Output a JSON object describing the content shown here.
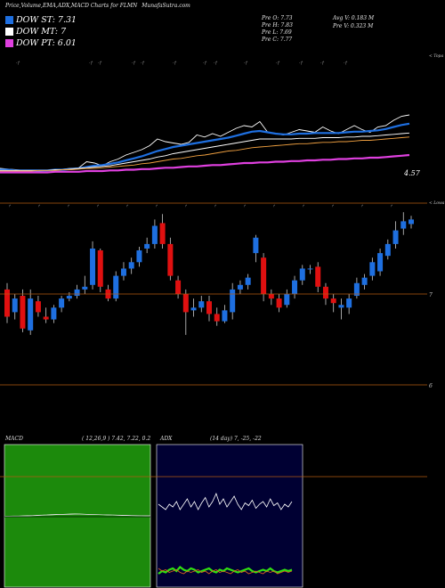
{
  "header": {
    "title": "Price,Volume,EMA,ADX,MACD Charts for FLMN",
    "site": "MunafaSutra.com"
  },
  "legend": [
    {
      "label": "DOW ST: 7.31",
      "color": "#1e6fe0"
    },
    {
      "label": "DOW MT: 7",
      "color": "#ffffff"
    },
    {
      "label": "DOW PT: 6.01",
      "color": "#e040e0"
    }
  ],
  "quote": {
    "pre_o": "Pre   O: 7.73",
    "pre_h": "Pre   H: 7.83",
    "pre_l": "Pre   L: 7.69",
    "pre_c": "Pre   C: 7.77",
    "avg_v": "Avg V: 0.183 M",
    "pre_v": "Pre   V: 0.323 M"
  },
  "labels": {
    "price_level": "4.57",
    "top_tag": "< Topa",
    "lower_tag": "< Lowa",
    "scale_7": "7",
    "scale_6": "6"
  },
  "macd": {
    "title": "MACD",
    "params": "( 12,26,9 ) 7.42,  7.22,  0.2",
    "accent": "#1c8a0c"
  },
  "adx": {
    "title": "ADX",
    "params": "(14  day) 7,  -25,  -22",
    "accent": "#000033"
  },
  "chart_data": {
    "type": "candlestick",
    "symbol": "FLMN",
    "y_scale_ticks": [
      7,
      6
    ],
    "candles": [
      {
        "o": 7.05,
        "c": 6.75,
        "h": 7.12,
        "l": 6.68
      },
      {
        "o": 6.8,
        "c": 6.95,
        "h": 7.0,
        "l": 6.72
      },
      {
        "o": 6.98,
        "c": 6.62,
        "h": 7.05,
        "l": 6.58
      },
      {
        "o": 6.6,
        "c": 6.95,
        "h": 7.05,
        "l": 6.55
      },
      {
        "o": 6.92,
        "c": 6.8,
        "h": 6.98,
        "l": 6.75
      },
      {
        "o": 6.75,
        "c": 6.72,
        "h": 6.85,
        "l": 6.68
      },
      {
        "o": 6.72,
        "c": 6.85,
        "h": 6.88,
        "l": 6.68
      },
      {
        "o": 6.85,
        "c": 6.95,
        "h": 6.98,
        "l": 6.8
      },
      {
        "o": 6.95,
        "c": 6.98,
        "h": 7.02,
        "l": 6.92
      },
      {
        "o": 6.98,
        "c": 7.05,
        "h": 7.1,
        "l": 6.95
      },
      {
        "o": 7.05,
        "c": 7.08,
        "h": 7.2,
        "l": 7.0
      },
      {
        "o": 7.1,
        "c": 7.5,
        "h": 7.58,
        "l": 7.05
      },
      {
        "o": 7.48,
        "c": 7.08,
        "h": 7.5,
        "l": 7.02
      },
      {
        "o": 7.05,
        "c": 6.95,
        "h": 7.1,
        "l": 6.92
      },
      {
        "o": 6.95,
        "c": 7.2,
        "h": 7.25,
        "l": 6.92
      },
      {
        "o": 7.2,
        "c": 7.28,
        "h": 7.35,
        "l": 7.15
      },
      {
        "o": 7.28,
        "c": 7.35,
        "h": 7.4,
        "l": 7.22
      },
      {
        "o": 7.35,
        "c": 7.48,
        "h": 7.52,
        "l": 7.3
      },
      {
        "o": 7.5,
        "c": 7.55,
        "h": 7.62,
        "l": 7.45
      },
      {
        "o": 7.55,
        "c": 7.75,
        "h": 7.82,
        "l": 7.5
      },
      {
        "o": 7.78,
        "c": 7.55,
        "h": 7.88,
        "l": 7.5
      },
      {
        "o": 7.55,
        "c": 7.2,
        "h": 7.62,
        "l": 7.15
      },
      {
        "o": 7.15,
        "c": 7.0,
        "h": 7.2,
        "l": 6.95
      },
      {
        "o": 7.0,
        "c": 6.8,
        "h": 7.05,
        "l": 6.55
      },
      {
        "o": 6.82,
        "c": 6.85,
        "h": 6.95,
        "l": 6.75
      },
      {
        "o": 6.85,
        "c": 6.92,
        "h": 6.98,
        "l": 6.8
      },
      {
        "o": 6.92,
        "c": 6.78,
        "h": 6.98,
        "l": 6.7
      },
      {
        "o": 6.78,
        "c": 6.7,
        "h": 6.85,
        "l": 6.65
      },
      {
        "o": 6.7,
        "c": 6.82,
        "h": 6.88,
        "l": 6.68
      },
      {
        "o": 6.8,
        "c": 7.05,
        "h": 7.12,
        "l": 6.72
      },
      {
        "o": 7.05,
        "c": 7.1,
        "h": 7.15,
        "l": 7.0
      },
      {
        "o": 7.1,
        "c": 7.18,
        "h": 7.22,
        "l": 7.05
      },
      {
        "o": 7.45,
        "c": 7.62,
        "h": 7.65,
        "l": 7.35
      },
      {
        "o": 7.4,
        "c": 7.0,
        "h": 7.45,
        "l": 6.92
      },
      {
        "o": 7.0,
        "c": 6.95,
        "h": 7.05,
        "l": 6.88
      },
      {
        "o": 6.95,
        "c": 6.85,
        "h": 7.0,
        "l": 6.8
      },
      {
        "o": 6.88,
        "c": 7.0,
        "h": 7.05,
        "l": 6.85
      },
      {
        "o": 7.0,
        "c": 7.15,
        "h": 7.2,
        "l": 6.95
      },
      {
        "o": 7.15,
        "c": 7.28,
        "h": 7.32,
        "l": 7.1
      },
      {
        "o": 7.28,
        "c": 7.28,
        "h": 7.32,
        "l": 7.22
      },
      {
        "o": 7.3,
        "c": 7.08,
        "h": 7.35,
        "l": 7.02
      },
      {
        "o": 7.08,
        "c": 6.95,
        "h": 7.12,
        "l": 6.88
      },
      {
        "o": 6.95,
        "c": 6.9,
        "h": 7.0,
        "l": 6.8
      },
      {
        "o": 6.85,
        "c": 6.88,
        "h": 6.95,
        "l": 6.72
      },
      {
        "o": 6.85,
        "c": 6.95,
        "h": 7.0,
        "l": 6.78
      },
      {
        "o": 6.98,
        "c": 7.12,
        "h": 7.18,
        "l": 6.95
      },
      {
        "o": 7.1,
        "c": 7.18,
        "h": 7.22,
        "l": 7.05
      },
      {
        "o": 7.2,
        "c": 7.35,
        "h": 7.4,
        "l": 7.15
      },
      {
        "o": 7.25,
        "c": 7.45,
        "h": 7.5,
        "l": 7.2
      },
      {
        "o": 7.42,
        "c": 7.55,
        "h": 7.6,
        "l": 7.38
      },
      {
        "o": 7.55,
        "c": 7.7,
        "h": 7.8,
        "l": 7.5
      },
      {
        "o": 7.72,
        "c": 7.8,
        "h": 7.9,
        "l": 7.65
      },
      {
        "o": 7.77,
        "c": 7.82,
        "h": 7.86,
        "l": 7.72
      }
    ],
    "ema_lines": [
      {
        "name": "price",
        "color": "#ffffff",
        "values": [
          0.08,
          0.07,
          0.06,
          0.05,
          0.02,
          0.04,
          0.05,
          0.06,
          0.07,
          0.08,
          0.09,
          0.18,
          0.16,
          0.12,
          0.18,
          0.22,
          0.28,
          0.32,
          0.36,
          0.42,
          0.52,
          0.48,
          0.46,
          0.44,
          0.47,
          0.58,
          0.55,
          0.6,
          0.56,
          0.62,
          0.68,
          0.72,
          0.7,
          0.78,
          0.62,
          0.6,
          0.58,
          0.62,
          0.66,
          0.64,
          0.62,
          0.7,
          0.64,
          0.6,
          0.66,
          0.72,
          0.66,
          0.62,
          0.7,
          0.72,
          0.8,
          0.86,
          0.88
        ]
      },
      {
        "name": "ema-short",
        "color": "#1e6fe0",
        "values": [
          0.06,
          0.06,
          0.05,
          0.05,
          0.05,
          0.05,
          0.05,
          0.06,
          0.06,
          0.07,
          0.08,
          0.1,
          0.12,
          0.13,
          0.15,
          0.17,
          0.2,
          0.23,
          0.26,
          0.3,
          0.34,
          0.37,
          0.4,
          0.42,
          0.44,
          0.46,
          0.48,
          0.5,
          0.52,
          0.54,
          0.57,
          0.6,
          0.63,
          0.64,
          0.62,
          0.6,
          0.59,
          0.59,
          0.6,
          0.6,
          0.61,
          0.61,
          0.61,
          0.61,
          0.62,
          0.63,
          0.63,
          0.64,
          0.65,
          0.67,
          0.7,
          0.73,
          0.75
        ]
      },
      {
        "name": "ema-mid",
        "color": "#ffffff",
        "values": [
          0.05,
          0.05,
          0.05,
          0.05,
          0.05,
          0.05,
          0.05,
          0.06,
          0.06,
          0.07,
          0.08,
          0.09,
          0.1,
          0.11,
          0.12,
          0.14,
          0.16,
          0.18,
          0.2,
          0.22,
          0.25,
          0.27,
          0.3,
          0.32,
          0.34,
          0.36,
          0.38,
          0.4,
          0.42,
          0.44,
          0.46,
          0.48,
          0.5,
          0.52,
          0.52,
          0.52,
          0.52,
          0.52,
          0.53,
          0.53,
          0.53,
          0.54,
          0.54,
          0.54,
          0.55,
          0.55,
          0.56,
          0.56,
          0.57,
          0.58,
          0.59,
          0.6,
          0.61
        ]
      },
      {
        "name": "ema-long",
        "color": "#f0a040",
        "values": [
          0.04,
          0.04,
          0.04,
          0.04,
          0.04,
          0.05,
          0.05,
          0.05,
          0.06,
          0.06,
          0.07,
          0.08,
          0.08,
          0.09,
          0.1,
          0.11,
          0.12,
          0.13,
          0.15,
          0.16,
          0.18,
          0.2,
          0.22,
          0.23,
          0.25,
          0.27,
          0.28,
          0.3,
          0.32,
          0.34,
          0.35,
          0.37,
          0.39,
          0.4,
          0.41,
          0.42,
          0.43,
          0.44,
          0.45,
          0.45,
          0.46,
          0.47,
          0.47,
          0.48,
          0.48,
          0.49,
          0.5,
          0.5,
          0.51,
          0.52,
          0.53,
          0.54,
          0.55
        ]
      },
      {
        "name": "ema-xlong",
        "color": "#e040e0",
        "values": [
          0.02,
          0.02,
          0.02,
          0.02,
          0.02,
          0.02,
          0.02,
          0.03,
          0.03,
          0.03,
          0.03,
          0.04,
          0.04,
          0.04,
          0.05,
          0.05,
          0.06,
          0.06,
          0.07,
          0.07,
          0.08,
          0.09,
          0.09,
          0.1,
          0.11,
          0.11,
          0.12,
          0.13,
          0.13,
          0.14,
          0.15,
          0.16,
          0.16,
          0.17,
          0.17,
          0.18,
          0.18,
          0.19,
          0.19,
          0.2,
          0.2,
          0.21,
          0.21,
          0.22,
          0.22,
          0.23,
          0.23,
          0.24,
          0.24,
          0.25,
          0.26,
          0.27,
          0.28
        ]
      }
    ],
    "macd_series": {
      "macd": [
        0.3,
        0.31,
        0.32,
        0.32,
        0.33,
        0.34,
        0.36,
        0.38,
        0.4,
        0.42,
        0.45,
        0.47,
        0.46,
        0.48,
        0.5,
        0.52,
        0.5,
        0.48,
        0.46,
        0.45,
        0.44,
        0.43,
        0.42,
        0.4,
        0.38,
        0.37,
        0.36,
        0.35,
        0.34,
        0.34,
        0.33,
        0.33
      ],
      "signal": [
        0.28,
        0.29,
        0.3,
        0.3,
        0.31,
        0.32,
        0.34,
        0.36,
        0.38,
        0.4,
        0.42,
        0.44,
        0.45,
        0.46,
        0.47,
        0.48,
        0.48,
        0.47,
        0.46,
        0.45,
        0.44,
        0.43,
        0.42,
        0.41,
        0.4,
        0.39,
        0.38,
        0.37,
        0.36,
        0.35,
        0.34,
        0.34
      ]
    },
    "adx_series": {
      "adx": [
        0.62,
        0.6,
        0.58,
        0.62,
        0.6,
        0.64,
        0.58,
        0.62,
        0.66,
        0.6,
        0.64,
        0.58,
        0.63,
        0.67,
        0.6,
        0.64,
        0.7,
        0.62,
        0.66,
        0.6,
        0.64,
        0.68,
        0.62,
        0.58,
        0.63,
        0.61,
        0.65,
        0.59,
        0.62,
        0.64,
        0.6,
        0.66,
        0.61,
        0.63,
        0.58,
        0.62,
        0.6,
        0.64
      ],
      "plus_di": [
        0.1,
        0.12,
        0.11,
        0.13,
        0.14,
        0.12,
        0.15,
        0.13,
        0.12,
        0.14,
        0.13,
        0.11,
        0.12,
        0.13,
        0.14,
        0.12,
        0.11,
        0.13,
        0.12,
        0.14,
        0.13,
        0.12,
        0.11,
        0.12,
        0.13,
        0.14,
        0.12,
        0.11,
        0.12,
        0.13,
        0.12,
        0.14,
        0.12,
        0.11,
        0.12,
        0.13,
        0.12,
        0.13
      ],
      "minus_di": [
        0.14,
        0.12,
        0.13,
        0.11,
        0.12,
        0.13,
        0.11,
        0.1,
        0.12,
        0.11,
        0.12,
        0.13,
        0.11,
        0.12,
        0.1,
        0.12,
        0.13,
        0.11,
        0.12,
        0.11,
        0.1,
        0.12,
        0.13,
        0.11,
        0.12,
        0.1,
        0.11,
        0.12,
        0.11,
        0.1,
        0.12,
        0.11,
        0.12,
        0.1,
        0.11,
        0.12,
        0.11,
        0.12
      ]
    }
  }
}
